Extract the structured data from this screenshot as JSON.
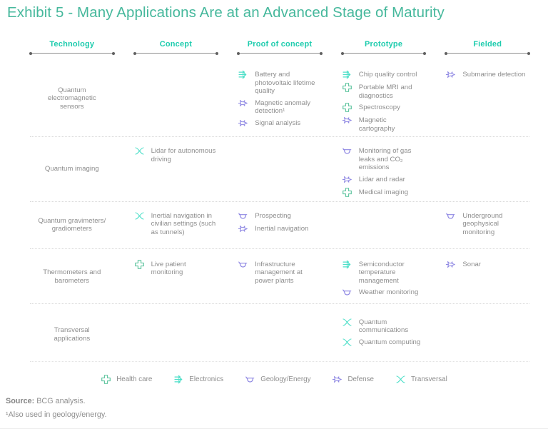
{
  "title": "Exhibit 5 - Many Applications Are at an Advanced Stage of Maturity",
  "colors": {
    "title": "#46b89c",
    "column_header": "#1fccae",
    "health_icon": "#66c7a3",
    "electronics_icon": "#4ddfc8",
    "geology_icon": "#8f88e3",
    "defense_icon": "#8f88e3",
    "transversal_icon": "#4ddfc8",
    "body_text": "#8d8d8d"
  },
  "columns": [
    "Technology",
    "Concept",
    "Proof of concept",
    "Prototype",
    "Fielded"
  ],
  "rows": [
    {
      "technology": "Quantum electromagnetic sensors",
      "concept": [],
      "proof_of_concept": [
        {
          "icon": "electronics",
          "label": "Battery and photovoltaic lifetime quality"
        },
        {
          "icon": "defense",
          "label": "Magnetic anomaly detection¹"
        },
        {
          "icon": "defense",
          "label": "Signal analysis"
        }
      ],
      "prototype": [
        {
          "icon": "electronics",
          "label": "Chip quality control"
        },
        {
          "icon": "health",
          "label": "Portable MRI and diagnostics"
        },
        {
          "icon": "health",
          "label": "Spectroscopy"
        },
        {
          "icon": "defense",
          "label": "Magnetic cartography"
        }
      ],
      "fielded": [
        {
          "icon": "defense",
          "label": "Submarine detection"
        }
      ]
    },
    {
      "technology": "Quantum imaging",
      "concept": [
        {
          "icon": "transversal",
          "label": "Lidar for autonomous driving"
        }
      ],
      "proof_of_concept": [],
      "prototype": [
        {
          "icon": "geology",
          "label": "Monitoring of gas leaks and CO₂ emissions"
        },
        {
          "icon": "defense",
          "label": "Lidar and radar"
        },
        {
          "icon": "health",
          "label": "Medical imaging"
        }
      ],
      "fielded": []
    },
    {
      "technology": "Quantum gravimeters/ gradiometers",
      "concept": [
        {
          "icon": "transversal",
          "label": "Inertial navigation in civilian settings (such as tunnels)"
        }
      ],
      "proof_of_concept": [
        {
          "icon": "geology",
          "label": "Prospecting"
        },
        {
          "icon": "defense",
          "label": "Inertial navigation"
        }
      ],
      "prototype": [],
      "fielded": [
        {
          "icon": "geology",
          "label": "Underground geophysical monitoring"
        }
      ]
    },
    {
      "technology": "Thermometers and barometers",
      "concept": [
        {
          "icon": "health",
          "label": "Live patient monitoring"
        }
      ],
      "proof_of_concept": [
        {
          "icon": "geology",
          "label": "Infrastructure management at power plants"
        }
      ],
      "prototype": [
        {
          "icon": "electronics",
          "label": "Semiconductor temperature management"
        },
        {
          "icon": "geology",
          "label": "Weather monitoring"
        }
      ],
      "fielded": [
        {
          "icon": "defense",
          "label": "Sonar"
        }
      ]
    },
    {
      "technology": "Transversal applications",
      "concept": [],
      "proof_of_concept": [],
      "prototype": [
        {
          "icon": "transversal",
          "label": "Quantum communications"
        },
        {
          "icon": "transversal",
          "label": "Quantum computing"
        }
      ],
      "fielded": []
    }
  ],
  "legend": [
    {
      "icon": "health",
      "label": "Health care"
    },
    {
      "icon": "electronics",
      "label": "Electronics"
    },
    {
      "icon": "geology",
      "label": "Geology/Energy"
    },
    {
      "icon": "defense",
      "label": "Defense"
    },
    {
      "icon": "transversal",
      "label": "Transversal"
    }
  ],
  "footer": {
    "source_label": "Source:",
    "source_text": "BCG analysis.",
    "footnote": "¹Also used in geology/energy."
  }
}
